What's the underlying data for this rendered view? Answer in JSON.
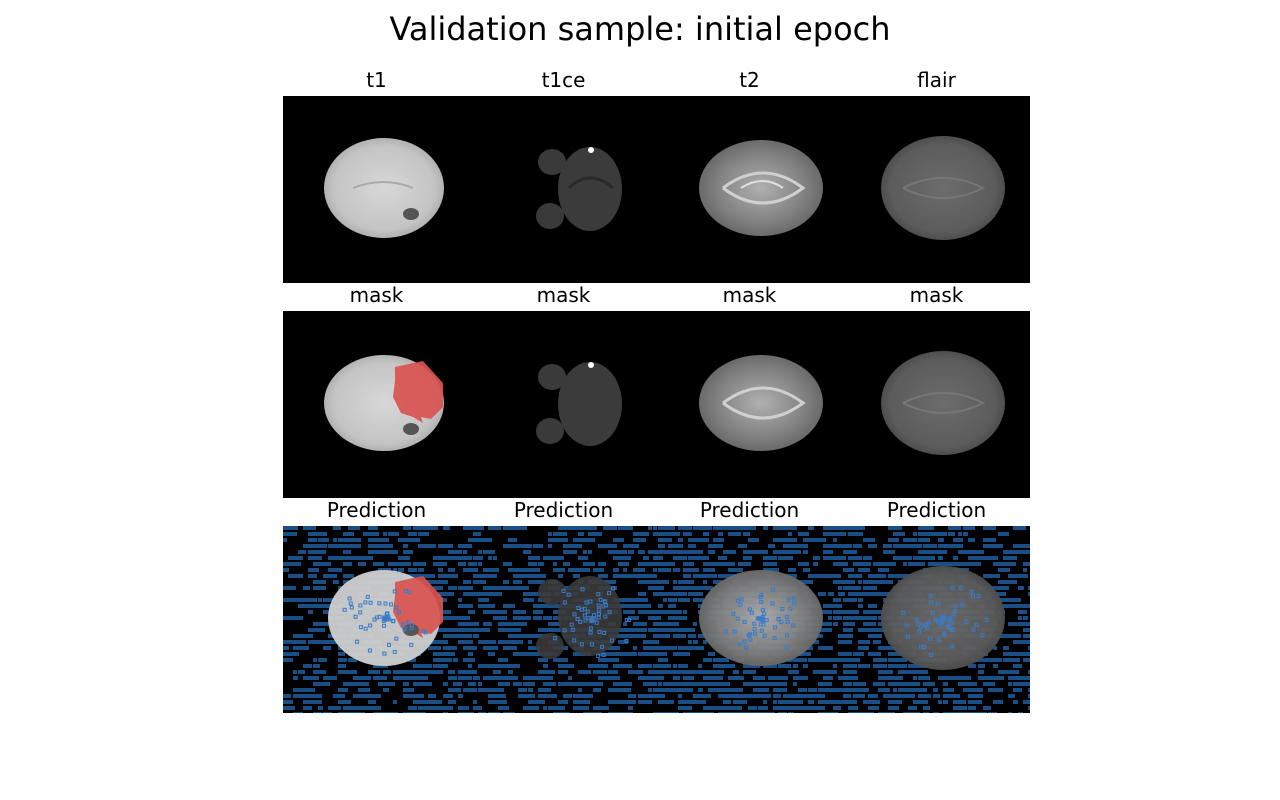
{
  "figure": {
    "title": "Validation sample: initial epoch"
  },
  "rows": [
    {
      "name": "modalities",
      "titles": [
        "t1",
        "t1ce",
        "t2",
        "flair"
      ]
    },
    {
      "name": "mask-overlays",
      "titles": [
        "mask",
        "mask",
        "mask",
        "mask"
      ]
    },
    {
      "name": "predictions",
      "titles": [
        "Prediction",
        "Prediction",
        "Prediction",
        "Prediction"
      ]
    }
  ],
  "colors": {
    "background": "#000000",
    "mask_overlay": "#d9534f",
    "prediction_overlay": "#1a4f86",
    "prediction_outline": "#3a7bc8"
  }
}
